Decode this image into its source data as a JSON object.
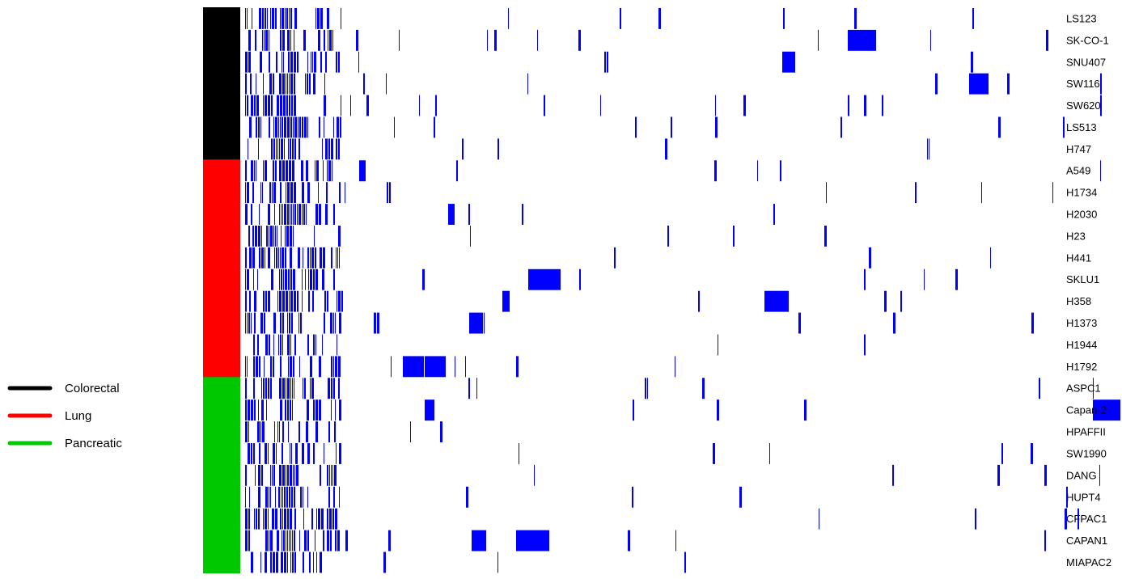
{
  "chart_data": {
    "type": "heatmap",
    "title": "",
    "xlabel": "",
    "ylabel": "",
    "encoding": "binary",
    "cell_color": "#0000ff",
    "background_color": "#ffffff",
    "tissue_colors": {
      "Colorectal": "#000000",
      "Lung": "#ff0000",
      "Pancreatic": "#00c800"
    },
    "legend": {
      "placement": "left",
      "entries": [
        {
          "label": "Colorectal",
          "color": "#000000"
        },
        {
          "label": "Lung",
          "color": "#ff0000"
        },
        {
          "label": "Pancreatic",
          "color": "#00c800"
        }
      ]
    },
    "rows": [
      {
        "label": "LS123",
        "group": "Colorectal",
        "seed": 11
      },
      {
        "label": "SK-CO-1",
        "group": "Colorectal",
        "seed": 23
      },
      {
        "label": "SNU407",
        "group": "Colorectal",
        "seed": 37
      },
      {
        "label": "SW116",
        "group": "Colorectal",
        "seed": 41
      },
      {
        "label": "SW620",
        "group": "Colorectal",
        "seed": 53
      },
      {
        "label": "LS513",
        "group": "Colorectal",
        "seed": 67
      },
      {
        "label": "H747",
        "group": "Colorectal",
        "seed": 71
      },
      {
        "label": "A549",
        "group": "Lung",
        "seed": 83
      },
      {
        "label": "H1734",
        "group": "Lung",
        "seed": 97
      },
      {
        "label": "H2030",
        "group": "Lung",
        "seed": 101
      },
      {
        "label": "H23",
        "group": "Lung",
        "seed": 113
      },
      {
        "label": "H441",
        "group": "Lung",
        "seed": 127
      },
      {
        "label": "SKLU1",
        "group": "Lung",
        "seed": 131
      },
      {
        "label": "H358",
        "group": "Lung",
        "seed": 149
      },
      {
        "label": "H1373",
        "group": "Lung",
        "seed": 151
      },
      {
        "label": "H1944",
        "group": "Lung",
        "seed": 163
      },
      {
        "label": "H1792",
        "group": "Lung",
        "seed": 173
      },
      {
        "label": "ASPC1",
        "group": "Pancreatic",
        "seed": 181
      },
      {
        "label": "Capan-2",
        "group": "Pancreatic",
        "seed": 191
      },
      {
        "label": "HPAFFII",
        "group": "Pancreatic",
        "seed": 197
      },
      {
        "label": "SW1990",
        "group": "Pancreatic",
        "seed": 211
      },
      {
        "label": "DANG",
        "group": "Pancreatic",
        "seed": 223
      },
      {
        "label": "HUPT4",
        "group": "Pancreatic",
        "seed": 227
      },
      {
        "label": "CFPAC1",
        "group": "Pancreatic",
        "seed": 239
      },
      {
        "label": "CAPAN1",
        "group": "Pancreatic",
        "seed": 241
      },
      {
        "label": "MIAPAC2",
        "group": "Pancreatic",
        "seed": 251
      }
    ]
  }
}
